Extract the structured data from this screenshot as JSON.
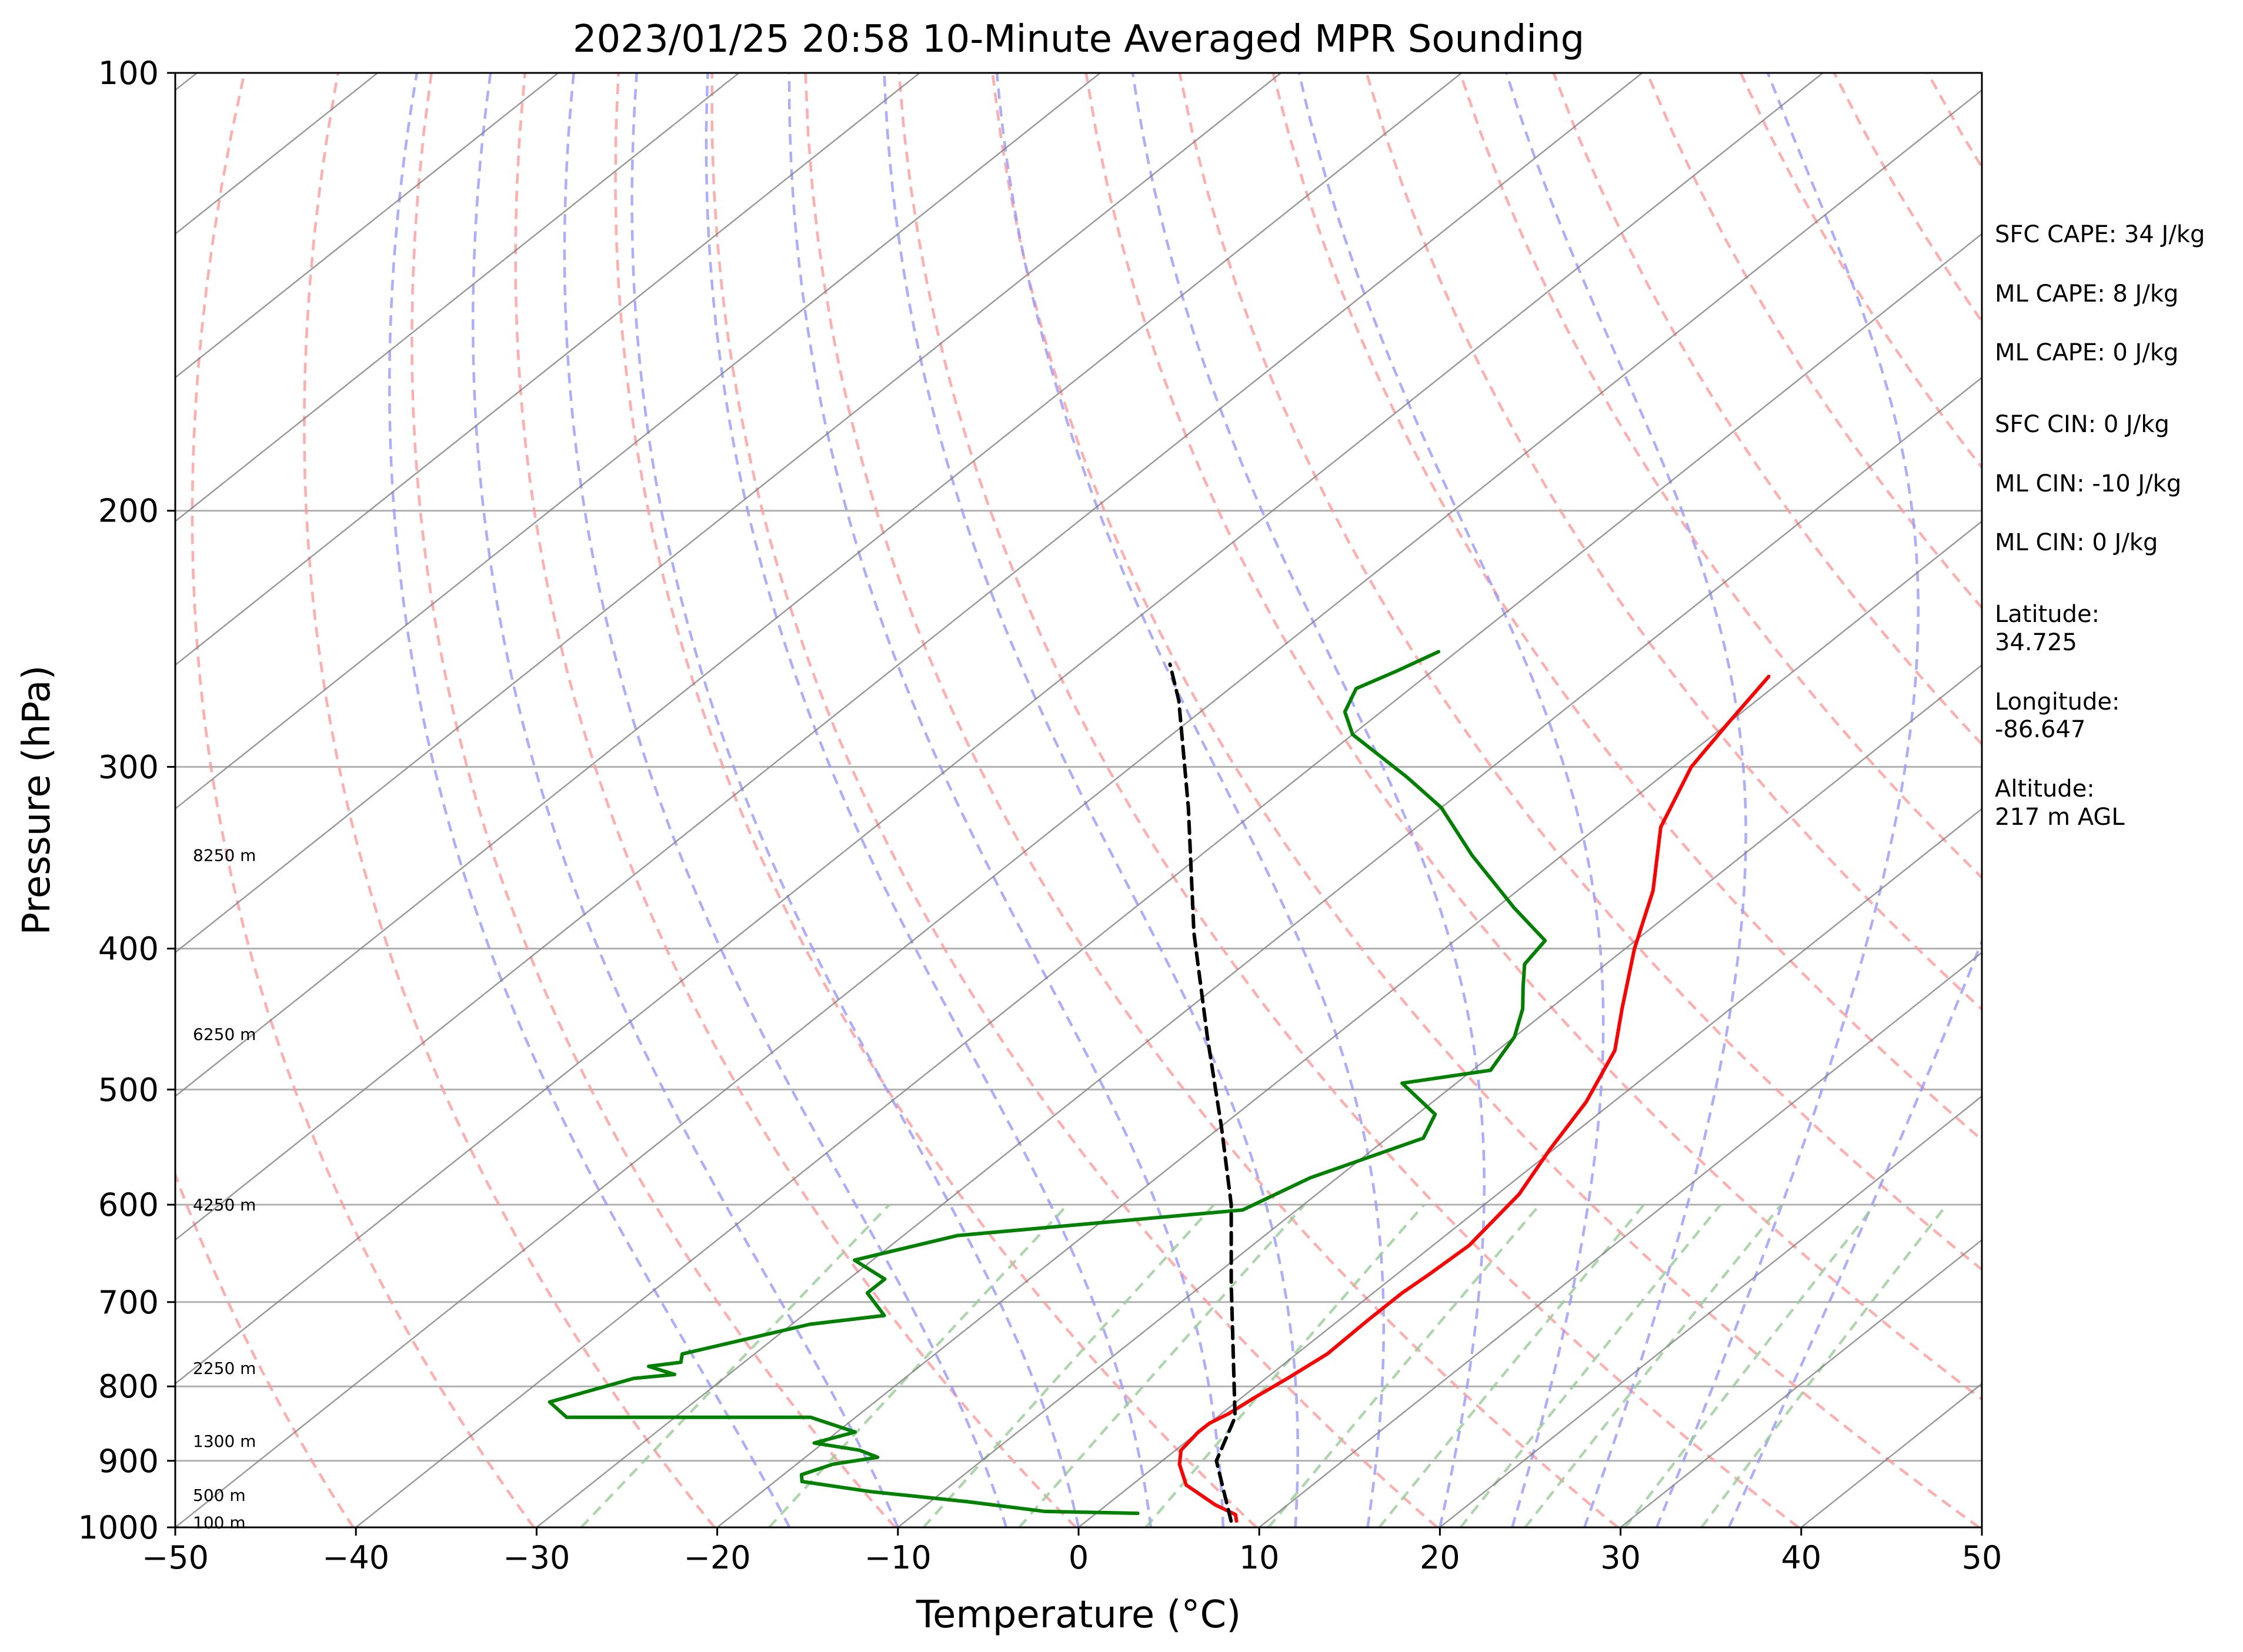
{
  "chart_data": {
    "type": "line",
    "title": "2023/01/25 20:58 10-Minute Averaged MPR Sounding",
    "xlabel": "Temperature (°C)",
    "ylabel": "Pressure (hPa)",
    "xlim": [
      -50,
      50
    ],
    "ylim": [
      1000,
      100
    ],
    "y_scale": "log",
    "skew": true,
    "grid": true,
    "x_ticks": [
      -50,
      -40,
      -30,
      -20,
      -10,
      0,
      10,
      20,
      30,
      40,
      50
    ],
    "x_tick_labels": [
      "−50",
      "−40",
      "−30",
      "−20",
      "−10",
      "0",
      "10",
      "20",
      "30",
      "40",
      "50"
    ],
    "y_ticks": [
      1000,
      900,
      800,
      700,
      600,
      500,
      400,
      300,
      200,
      100
    ],
    "y_tick_labels": [
      "1000",
      "900",
      "800",
      "700",
      "600",
      "500",
      "400",
      "300",
      "200",
      "100"
    ],
    "colors": {
      "temperature": "#ff0000",
      "dewpoint": "#008000",
      "parcel": "#000000",
      "isotherm": "#808080",
      "dry_adiabat": "#ff9999",
      "moist_adiabat": "#9999ff",
      "mixing_ratio": "#99cc99"
    },
    "series": [
      {
        "key": "temperature",
        "x": [
          8.3,
          7.8,
          6.0,
          3.0,
          1.2,
          0.3,
          0.0,
          0.0,
          0.4,
          0.7,
          1.2,
          1.7,
          1.6,
          1.6,
          1.8,
          2.0,
          1.2,
          -0.2,
          -1.5,
          -3.5,
          -6.0,
          -9.5,
          -12.5,
          -16.5,
          -19.0,
          -20.0,
          -21.0
        ],
        "y": [
          990,
          980,
          965,
          935,
          905,
          885,
          860,
          848,
          835,
          815,
          790,
          760,
          720,
          690,
          670,
          640,
          590,
          550,
          510,
          470,
          440,
          400,
          365,
          330,
          300,
          280,
          260
        ]
      },
      {
        "key": "dewpoint",
        "x": [
          2.3,
          -3.0,
          -8.0,
          -14.0,
          -18.5,
          -19.0,
          -18.0,
          -16.0,
          -17.5,
          -20.5,
          -19.0,
          -22.5,
          -36.0,
          -38.0,
          -36.5,
          -35.0,
          -33.0,
          -35.0,
          -33.5,
          -34.0,
          -29.0,
          -25.5,
          -28.0,
          -28.0,
          -31.0,
          -27.0,
          -13.0,
          -11.5,
          -8.0,
          -9.0,
          -13.0,
          -9.0,
          -10.0,
          -11.5,
          -13.0,
          -14.5,
          -15.0,
          -19.0,
          -25.0,
          -30.0,
          -34.0,
          -40.0,
          -42.0,
          -43.0,
          -42.0,
          -41.0
        ],
        "y": [
          978,
          975,
          960,
          945,
          930,
          920,
          905,
          895,
          885,
          875,
          860,
          840,
          840,
          820,
          805,
          790,
          785,
          775,
          770,
          760,
          725,
          715,
          690,
          675,
          655,
          630,
          605,
          575,
          540,
          520,
          495,
          485,
          460,
          440,
          425,
          410,
          395,
          375,
          345,
          320,
          305,
          285,
          275,
          265,
          258,
          250
        ]
      },
      {
        "key": "parcel",
        "x": [
          8.0,
          3.0,
          1.0,
          -3.5,
          -8.5,
          -14.0,
          -20.0,
          -27.0,
          -35.0,
          -44.0,
          -52.0,
          -55.0
        ],
        "y": [
          990,
          900,
          840,
          760,
          680,
          600,
          530,
          460,
          390,
          320,
          270,
          255
        ]
      }
    ],
    "side_annotations": [
      "SFC CAPE: 34 J/kg",
      "ML CAPE: 8 J/kg",
      "ML CAPE: 0 J/kg",
      "SFC CIN: 0 J/kg",
      "ML CIN: -10 J/kg",
      "ML CIN: 0 J/kg",
      "Latitude:",
      "34.725",
      "Longitude:",
      "-86.647",
      "Altitude:",
      "217 m AGL"
    ],
    "height_labels": [
      {
        "text": "8250 m",
        "p": 345
      },
      {
        "text": "6250 m",
        "p": 458
      },
      {
        "text": "4250 m",
        "p": 600
      },
      {
        "text": "2250 m",
        "p": 777
      },
      {
        "text": "1300 m",
        "p": 872
      },
      {
        "text": "500 m",
        "p": 950
      },
      {
        "text": "100 m",
        "p": 992
      }
    ]
  }
}
